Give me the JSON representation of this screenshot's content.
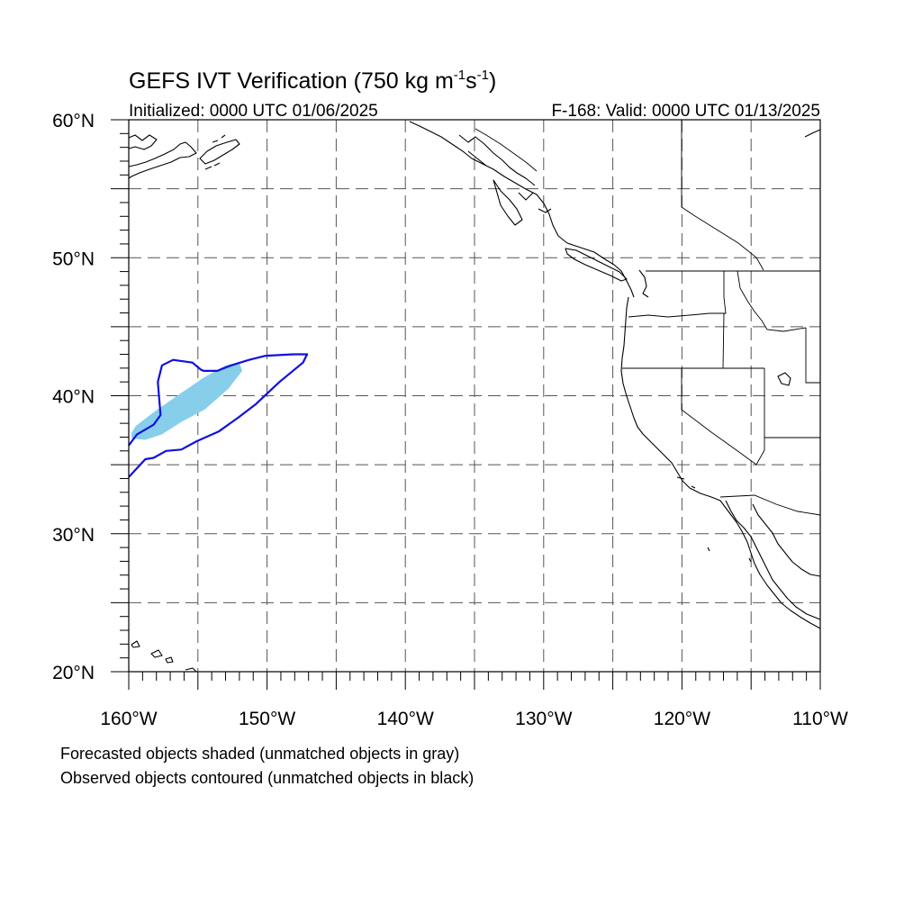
{
  "title": {
    "main": "GEFS IVT Verification (750 kg m",
    "exp1": "-1",
    "mid": "s",
    "exp2": "-1",
    "close": ")"
  },
  "subtitle_left": "Initialized: 0000 UTC 01/06/2025",
  "subtitle_right": "F-168: Valid: 0000 UTC 01/13/2025",
  "lat_labels": [
    "60°N",
    "50°N",
    "40°N",
    "30°N",
    "20°N"
  ],
  "lon_labels": [
    "160°W",
    "150°W",
    "140°W",
    "130°W",
    "120°W",
    "110°W"
  ],
  "footer": {
    "line1": "Forecasted objects shaded (unmatched objects in gray)",
    "line2": "Observed objects contoured (unmatched objects in black)"
  },
  "map": {
    "lat_range": [
      20,
      60
    ],
    "lon_range": [
      -160,
      -110
    ],
    "grid_spacing_deg": 5,
    "label_spacing_deg": 10,
    "gridlines": "dashed"
  },
  "colors": {
    "forecast_shade": "#87ceeb",
    "observed_contour": "#1010e0",
    "coastline": "#000000"
  },
  "objects": {
    "forecast_shaded": {
      "matched": true,
      "outline_lonlat": [
        [
          -159.8,
          36.9
        ],
        [
          -158.8,
          36.8
        ],
        [
          -157.6,
          37.2
        ],
        [
          -156.2,
          38.1
        ],
        [
          -154.5,
          39.0
        ],
        [
          -152.8,
          40.5
        ],
        [
          -151.8,
          41.8
        ],
        [
          -152.0,
          42.4
        ],
        [
          -153.0,
          42.2
        ],
        [
          -154.6,
          41.3
        ],
        [
          -156.5,
          40.0
        ],
        [
          -158.2,
          38.8
        ],
        [
          -159.5,
          37.8
        ],
        [
          -159.8,
          37.3
        ]
      ]
    },
    "observed_contour": {
      "matched": true,
      "outline_lonlat": [
        [
          -160.0,
          36.4
        ],
        [
          -159.4,
          37.2
        ],
        [
          -158.2,
          37.9
        ],
        [
          -157.7,
          38.6
        ],
        [
          -157.9,
          41.0
        ],
        [
          -157.6,
          42.2
        ],
        [
          -156.8,
          42.6
        ],
        [
          -155.4,
          42.4
        ],
        [
          -154.8,
          41.9
        ],
        [
          -154.6,
          41.8
        ],
        [
          -153.6,
          41.8
        ],
        [
          -152.6,
          42.2
        ],
        [
          -151.3,
          42.6
        ],
        [
          -150.1,
          42.9
        ],
        [
          -148.1,
          43.0
        ],
        [
          -147.1,
          43.0
        ],
        [
          -147.4,
          42.4
        ],
        [
          -149.1,
          41.0
        ],
        [
          -150.8,
          39.4
        ],
        [
          -152.1,
          38.4
        ],
        [
          -153.5,
          37.4
        ],
        [
          -155.1,
          36.7
        ],
        [
          -156.2,
          36.1
        ],
        [
          -157.3,
          36.0
        ],
        [
          -158.2,
          35.5
        ],
        [
          -158.8,
          35.4
        ],
        [
          -160.0,
          34.1
        ]
      ]
    }
  }
}
